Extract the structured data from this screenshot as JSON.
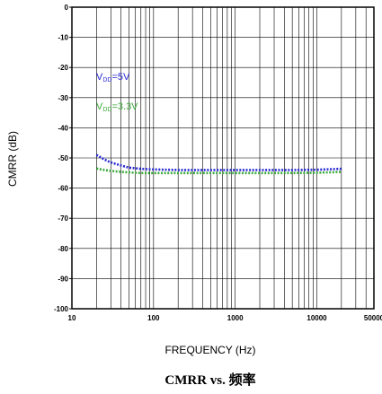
{
  "chart_data": {
    "type": "line",
    "title": "CMRR vs. 频率",
    "xlabel": "FREQUENCY (Hz)",
    "ylabel": "CMRR (dB)",
    "xscale": "log",
    "xlim": [
      10,
      50000
    ],
    "ylim": [
      -100,
      0
    ],
    "grid": true,
    "x_tick_labels": [
      {
        "value": 10,
        "label": "10"
      },
      {
        "value": 100,
        "label": "100"
      },
      {
        "value": 1000,
        "label": "1000"
      },
      {
        "value": 10000,
        "label": "10000"
      },
      {
        "value": 50000,
        "label": "50000"
      }
    ],
    "y_tick_labels": [
      {
        "value": 0,
        "label": "0"
      },
      {
        "value": -10,
        "label": "-10"
      },
      {
        "value": -20,
        "label": "-20"
      },
      {
        "value": -30,
        "label": "-30"
      },
      {
        "value": -40,
        "label": "-40"
      },
      {
        "value": -50,
        "label": "-50"
      },
      {
        "value": -60,
        "label": "-60"
      },
      {
        "value": -70,
        "label": "-70"
      },
      {
        "value": -80,
        "label": "-80"
      },
      {
        "value": -90,
        "label": "-90"
      },
      {
        "value": -100,
        "label": "-100"
      }
    ],
    "series": [
      {
        "name": "VDD=5V",
        "label_main": "V",
        "label_sub": "DD",
        "label_tail": "=5V",
        "color": "#2b2bd6",
        "style": "dotted",
        "x": [
          20,
          25,
          30,
          40,
          50,
          70,
          100,
          200,
          500,
          1000,
          2000,
          5000,
          10000,
          20000
        ],
        "y": [
          -49,
          -50.5,
          -51.5,
          -52.5,
          -53.2,
          -53.6,
          -53.8,
          -54,
          -54,
          -54,
          -54,
          -54,
          -53.9,
          -53.6
        ]
      },
      {
        "name": "VDD=3.3V",
        "label_main": "V",
        "label_sub": "DD",
        "label_tail": "=3.3V",
        "color": "#3daa3d",
        "style": "dotted",
        "x": [
          20,
          25,
          30,
          40,
          50,
          70,
          100,
          200,
          500,
          1000,
          2000,
          5000,
          10000,
          20000
        ],
        "y": [
          -53.5,
          -54,
          -54.3,
          -54.6,
          -54.8,
          -55,
          -55,
          -55,
          -55,
          -55,
          -55,
          -55,
          -54.9,
          -54.6
        ]
      }
    ]
  }
}
